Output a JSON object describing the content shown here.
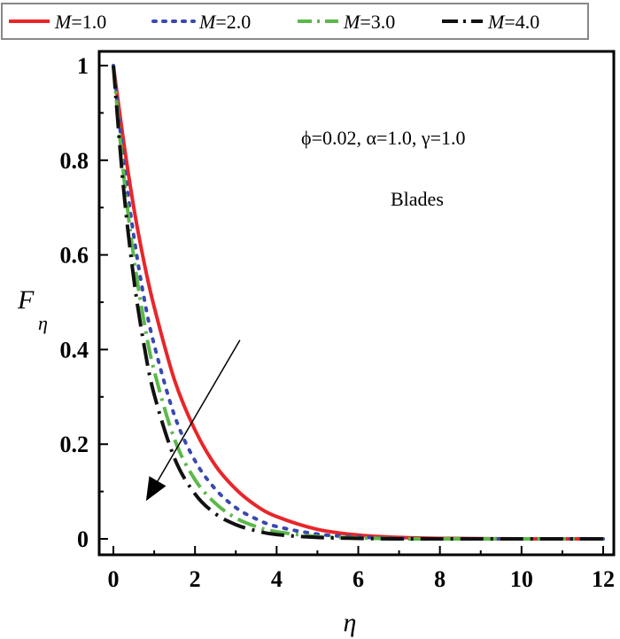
{
  "chart_data": {
    "type": "line",
    "xlabel": "η",
    "ylabel": "F",
    "ylabel_sub": "η",
    "xlim": [
      0,
      12
    ],
    "ylim": [
      0,
      1
    ],
    "xticks": [
      "0",
      "2",
      "4",
      "6",
      "8",
      "10",
      "12"
    ],
    "yticks": [
      "0",
      "0.2",
      "0.4",
      "0.6",
      "0.8",
      "1"
    ],
    "grid": false,
    "legend_position": "top",
    "annotations": [
      "ϕ=0.02, α=1.0, γ=1.0",
      "Blades"
    ],
    "arrow": {
      "from": [
        3.1,
        0.42
      ],
      "to": [
        0.8,
        0.08
      ]
    },
    "series": [
      {
        "name": "M=1.0",
        "color": "#e8262a",
        "style": "solid",
        "x": [
          0,
          0.25,
          0.5,
          0.75,
          1,
          1.5,
          2,
          2.5,
          3,
          3.5,
          4,
          5,
          6,
          7,
          8,
          10,
          12
        ],
        "values": [
          1.0,
          0.84,
          0.7,
          0.585,
          0.49,
          0.335,
          0.23,
          0.155,
          0.105,
          0.07,
          0.047,
          0.02,
          0.008,
          0.003,
          0.001,
          0.0,
          0.0
        ]
      },
      {
        "name": "M=2.0",
        "color": "#3a48b0",
        "style": "dotted",
        "x": [
          0,
          0.25,
          0.5,
          0.75,
          1,
          1.5,
          2,
          2.5,
          3,
          3.5,
          4,
          5,
          6,
          7,
          8,
          10,
          12
        ],
        "values": [
          1.0,
          0.8,
          0.64,
          0.51,
          0.41,
          0.26,
          0.165,
          0.105,
          0.066,
          0.042,
          0.026,
          0.01,
          0.004,
          0.001,
          0.0,
          0.0,
          0.0
        ]
      },
      {
        "name": "M=3.0",
        "color": "#5cb84a",
        "style": "dashdot",
        "x": [
          0,
          0.25,
          0.5,
          0.75,
          1,
          1.5,
          2,
          2.5,
          3,
          3.5,
          4,
          5,
          6,
          7,
          8,
          10,
          12
        ],
        "values": [
          1.0,
          0.77,
          0.595,
          0.46,
          0.355,
          0.21,
          0.125,
          0.075,
          0.044,
          0.026,
          0.015,
          0.005,
          0.002,
          0.0,
          0.0,
          0.0,
          0.0
        ]
      },
      {
        "name": "M=4.0",
        "color": "#111111",
        "style": "longdash-dot",
        "x": [
          0,
          0.25,
          0.5,
          0.75,
          1,
          1.5,
          2,
          2.5,
          3,
          3.5,
          4,
          5,
          6,
          7,
          8,
          10,
          12
        ],
        "values": [
          1.0,
          0.74,
          0.55,
          0.41,
          0.305,
          0.17,
          0.095,
          0.053,
          0.03,
          0.017,
          0.009,
          0.003,
          0.001,
          0.0,
          0.0,
          0.0,
          0.0
        ]
      }
    ]
  }
}
